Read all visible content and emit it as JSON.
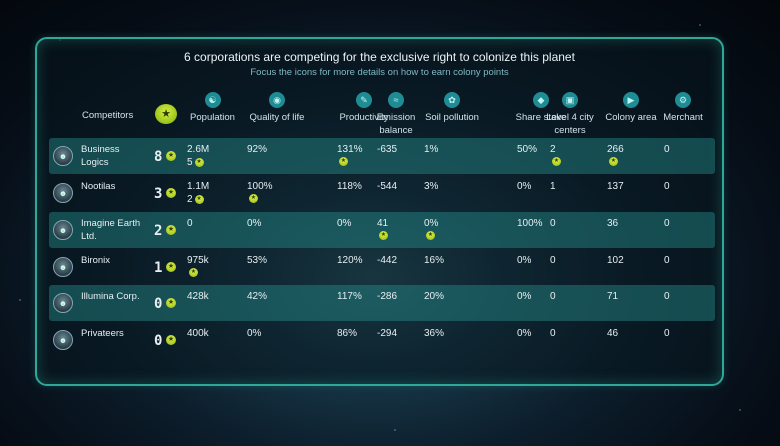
{
  "title": "6 corporations are competing for the exclusive right to colonize this planet",
  "subtitle": "Focus the icons for more details on how to earn colony points",
  "colors": {
    "accent": "#2ea898",
    "highlight_row": "#268e8c",
    "trophy": "#a4c822"
  },
  "header": {
    "competitors": "Competitors",
    "trophy_icon": "trophy-icon",
    "columns": [
      {
        "label": "Population",
        "icon": "population-icon"
      },
      {
        "label": "Quality of life",
        "icon": "quality-of-life-icon"
      },
      {
        "label": "Productivity",
        "icon": "productivity-icon"
      },
      {
        "label": "Emission balance",
        "icon": "emission-icon"
      },
      {
        "label": "Soil pollution",
        "icon": "soil-pollution-icon"
      },
      {
        "label": "Share stake",
        "icon": "share-stake-icon"
      },
      {
        "label": "Level 4 city centers",
        "icon": "city-center-icon"
      },
      {
        "label": "Colony area",
        "icon": "colony-area-icon"
      },
      {
        "label": "Merchant",
        "icon": "merchant-icon"
      }
    ]
  },
  "rows": [
    {
      "name": "Business Logics",
      "rank": "8",
      "highlight": true,
      "cells": [
        "2.6M",
        "92%",
        "131%",
        "-635",
        "1%",
        "50%",
        "2",
        "266",
        "0"
      ],
      "extra": {
        "population": "5"
      },
      "badges": [
        true,
        false,
        true,
        false,
        false,
        false,
        true,
        true,
        false
      ]
    },
    {
      "name": "Nootilas",
      "rank": "3",
      "highlight": false,
      "cells": [
        "1.1M",
        "100%",
        "118%",
        "-544",
        "3%",
        "0%",
        "1",
        "137",
        "0"
      ],
      "extra": {
        "population": "2"
      },
      "badges": [
        true,
        true,
        false,
        false,
        false,
        false,
        false,
        false,
        false
      ]
    },
    {
      "name": "Imagine Earth Ltd.",
      "rank": "2",
      "highlight": true,
      "cells": [
        "0",
        "0%",
        "0%",
        "41",
        "0%",
        "100%",
        "0",
        "36",
        "0"
      ],
      "extra": {},
      "badges": [
        false,
        false,
        false,
        true,
        true,
        false,
        false,
        false,
        false
      ]
    },
    {
      "name": "Bironix",
      "rank": "1",
      "highlight": false,
      "cells": [
        "975k",
        "53%",
        "120%",
        "-442",
        "16%",
        "0%",
        "0",
        "102",
        "0"
      ],
      "extra": {},
      "badges": [
        true,
        false,
        false,
        false,
        false,
        false,
        false,
        false,
        false
      ]
    },
    {
      "name": "Illumina Corp.",
      "rank": "0",
      "highlight": true,
      "cells": [
        "428k",
        "42%",
        "117%",
        "-286",
        "20%",
        "0%",
        "0",
        "71",
        "0"
      ],
      "extra": {},
      "badges": [
        false,
        false,
        false,
        false,
        false,
        false,
        false,
        false,
        false
      ]
    },
    {
      "name": "Privateers",
      "rank": "0",
      "highlight": false,
      "cells": [
        "400k",
        "0%",
        "86%",
        "-294",
        "36%",
        "0%",
        "0",
        "46",
        "0"
      ],
      "extra": {},
      "badges": [
        false,
        false,
        false,
        false,
        false,
        false,
        false,
        false,
        false
      ]
    }
  ]
}
